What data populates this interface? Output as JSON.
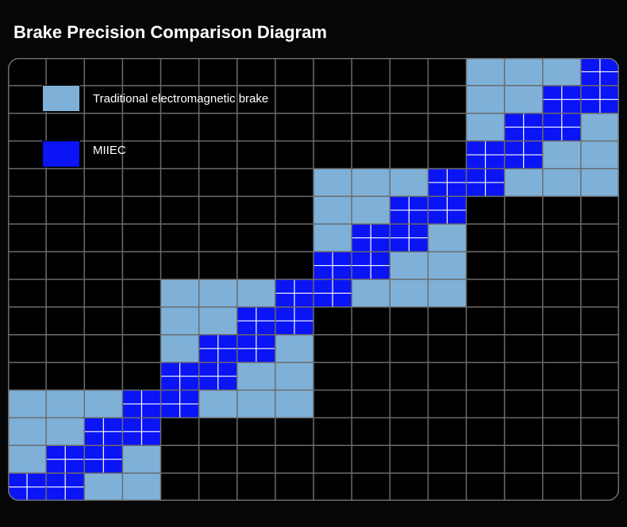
{
  "title": "Brake Precision Comparison Diagram",
  "colors": {
    "background": "#060606",
    "grid_line": "#6b6b6b",
    "traditional": "#7fb1d8",
    "miiec": "#0a14f5",
    "miiec_inner_line": "#ffffff"
  },
  "legend": {
    "items": [
      {
        "label": "Traditional electromagnetic brake",
        "color_key": "traditional"
      },
      {
        "label": "MIIEC",
        "color_key": "miiec"
      }
    ]
  },
  "grid": {
    "columns": 16,
    "rows": 16,
    "traditional_cells": [
      [
        12,
        0
      ],
      [
        13,
        0
      ],
      [
        14,
        0
      ],
      [
        12,
        1
      ],
      [
        13,
        1
      ],
      [
        12,
        2
      ],
      [
        15,
        2
      ],
      [
        14,
        3
      ],
      [
        15,
        3
      ],
      [
        13,
        4
      ],
      [
        14,
        4
      ],
      [
        15,
        4
      ],
      [
        8,
        4
      ],
      [
        9,
        4
      ],
      [
        10,
        4
      ],
      [
        8,
        5
      ],
      [
        9,
        5
      ],
      [
        8,
        6
      ],
      [
        11,
        6
      ],
      [
        10,
        7
      ],
      [
        11,
        7
      ],
      [
        9,
        8
      ],
      [
        10,
        8
      ],
      [
        11,
        8
      ],
      [
        4,
        8
      ],
      [
        5,
        8
      ],
      [
        6,
        8
      ],
      [
        4,
        9
      ],
      [
        5,
        9
      ],
      [
        4,
        10
      ],
      [
        7,
        10
      ],
      [
        6,
        11
      ],
      [
        7,
        11
      ],
      [
        5,
        12
      ],
      [
        6,
        12
      ],
      [
        7,
        12
      ],
      [
        0,
        12
      ],
      [
        1,
        12
      ],
      [
        2,
        12
      ],
      [
        0,
        13
      ],
      [
        1,
        13
      ],
      [
        0,
        14
      ],
      [
        3,
        14
      ],
      [
        2,
        15
      ],
      [
        3,
        15
      ]
    ],
    "miiec_cells": [
      [
        15,
        0
      ],
      [
        14,
        1
      ],
      [
        15,
        1
      ],
      [
        13,
        2
      ],
      [
        14,
        2
      ],
      [
        12,
        3
      ],
      [
        13,
        3
      ],
      [
        12,
        4
      ],
      [
        11,
        4
      ],
      [
        10,
        5
      ],
      [
        11,
        5
      ],
      [
        9,
        6
      ],
      [
        10,
        6
      ],
      [
        8,
        7
      ],
      [
        9,
        7
      ],
      [
        7,
        8
      ],
      [
        8,
        8
      ],
      [
        6,
        9
      ],
      [
        7,
        9
      ],
      [
        5,
        10
      ],
      [
        6,
        10
      ],
      [
        4,
        11
      ],
      [
        5,
        11
      ],
      [
        3,
        12
      ],
      [
        4,
        12
      ],
      [
        2,
        13
      ],
      [
        3,
        13
      ],
      [
        1,
        14
      ],
      [
        2,
        14
      ],
      [
        0,
        15
      ],
      [
        1,
        15
      ]
    ]
  }
}
